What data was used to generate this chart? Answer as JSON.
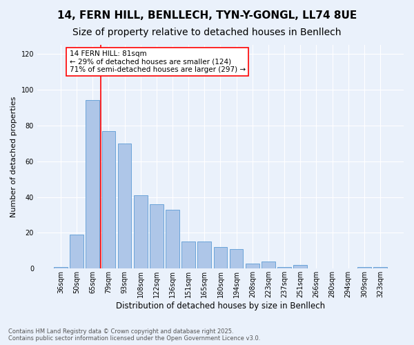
{
  "title": "14, FERN HILL, BENLLECH, TYN-Y-GONGL, LL74 8UE",
  "subtitle": "Size of property relative to detached houses in Benllech",
  "xlabel": "Distribution of detached houses by size in Benllech",
  "ylabel": "Number of detached properties",
  "categories": [
    "36sqm",
    "50sqm",
    "65sqm",
    "79sqm",
    "93sqm",
    "108sqm",
    "122sqm",
    "136sqm",
    "151sqm",
    "165sqm",
    "180sqm",
    "194sqm",
    "208sqm",
    "223sqm",
    "237sqm",
    "251sqm",
    "266sqm",
    "280sqm",
    "294sqm",
    "309sqm",
    "323sqm"
  ],
  "values": [
    1,
    19,
    94,
    77,
    70,
    41,
    36,
    33,
    15,
    15,
    12,
    11,
    3,
    4,
    1,
    2,
    0,
    0,
    0,
    1,
    1
  ],
  "bar_color": "#aec6e8",
  "bar_edge_color": "#5b9bd5",
  "background_color": "#eaf1fb",
  "vline_color": "red",
  "annotation_text": "14 FERN HILL: 81sqm\n← 29% of detached houses are smaller (124)\n71% of semi-detached houses are larger (297) →",
  "annotation_box_color": "white",
  "annotation_box_edge": "red",
  "ylim": [
    0,
    125
  ],
  "yticks": [
    0,
    20,
    40,
    60,
    80,
    100,
    120
  ],
  "footer": "Contains HM Land Registry data © Crown copyright and database right 2025.\nContains public sector information licensed under the Open Government Licence v3.0.",
  "title_fontsize": 11,
  "subtitle_fontsize": 10,
  "xlabel_fontsize": 8.5,
  "ylabel_fontsize": 8,
  "tick_fontsize": 7,
  "footer_fontsize": 6,
  "annotation_fontsize": 7.5
}
